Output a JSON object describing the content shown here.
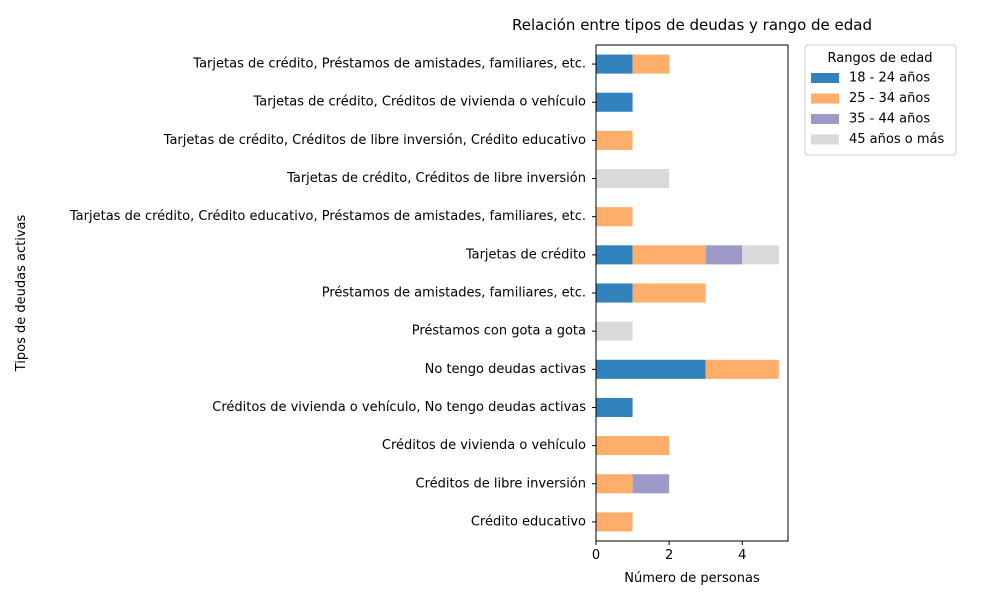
{
  "chart_data": {
    "type": "bar",
    "orientation": "horizontal",
    "stacked": true,
    "title": "Relación entre tipos de deudas y rango de edad",
    "xlabel": "Número de personas",
    "ylabel": "Tipos de deudas activas",
    "xlim": [
      0,
      5.25
    ],
    "xticks": [
      "0",
      "2",
      "4"
    ],
    "grid": false,
    "legend": {
      "title": "Rangos de edad",
      "placement": "outside top-right"
    },
    "categories": [
      "Crédito educativo",
      "Créditos de libre inversión",
      "Créditos de vivienda o vehículo",
      "Créditos de vivienda o vehículo, No tengo deudas activas",
      "No tengo deudas activas",
      "Préstamos con gota a gota",
      "Préstamos de amistades, familiares, etc.",
      "Tarjetas de crédito",
      "Tarjetas de crédito, Crédito educativo, Préstamos de amistades, familiares, etc.",
      "Tarjetas de crédito, Créditos de libre inversión",
      "Tarjetas de crédito, Créditos de libre inversión, Crédito educativo",
      "Tarjetas de crédito, Créditos de vivienda o vehículo",
      "Tarjetas de crédito, Préstamos de amistades, familiares, etc."
    ],
    "series": [
      {
        "name": "18 - 24 años",
        "color": "#3182bd",
        "values": [
          0,
          0,
          0,
          1,
          3,
          0,
          1,
          1,
          0,
          0,
          0,
          1,
          1
        ]
      },
      {
        "name": "25 - 34 años",
        "color": "#fdae6b",
        "values": [
          1,
          1,
          2,
          0,
          2,
          0,
          2,
          2,
          1,
          0,
          1,
          0,
          1
        ]
      },
      {
        "name": "35 - 44 años",
        "color": "#9e9ac8",
        "values": [
          0,
          1,
          0,
          0,
          0,
          0,
          0,
          1,
          0,
          0,
          0,
          0,
          0
        ]
      },
      {
        "name": "45 años o más",
        "color": "#d9d9d9",
        "values": [
          0,
          0,
          0,
          0,
          0,
          1,
          0,
          1,
          0,
          2,
          0,
          0,
          0
        ]
      }
    ]
  }
}
